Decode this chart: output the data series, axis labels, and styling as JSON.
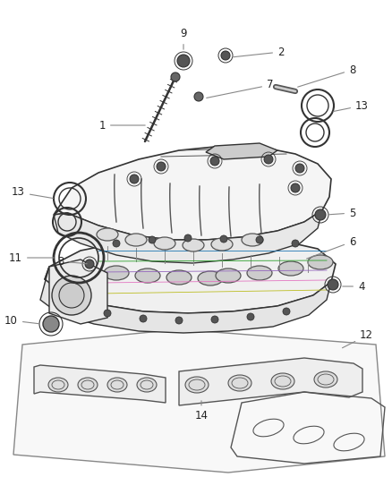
{
  "background_color": "#ffffff",
  "line_dark": "#333333",
  "line_mid": "#555555",
  "line_light": "#888888",
  "label_color": "#222222",
  "label_fontsize": 8.5,
  "fig_width": 4.38,
  "fig_height": 5.33,
  "dpi": 100
}
